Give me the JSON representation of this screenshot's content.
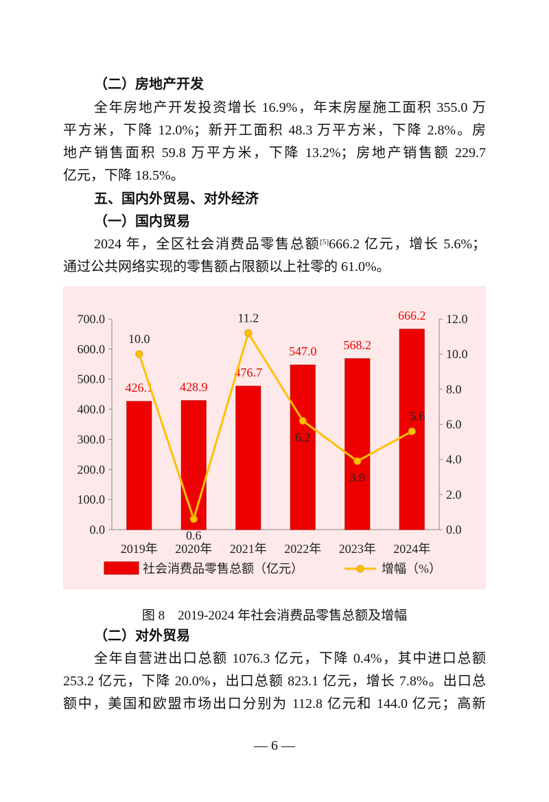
{
  "section1": {
    "heading": "（二）房地产开发",
    "lines": [
      "全年房地产开发投资增长 16.9%，年末房屋施工面积 355.0 万",
      "平方米，下降 12.0%；新开工面积 48.3 万平方米，下降 2.8%。房",
      "地产销售面积 59.8 万平方米，下降 13.2%；房地产销售额 229.7",
      "亿元，下降 18.5%。"
    ]
  },
  "section2": {
    "heading": "五、国内外贸易、对外经济",
    "subheading": "（一）国内贸易",
    "line1_a": "2024 年，全区社会消费品零售总额",
    "line1_sup": "[5]",
    "line1_b": "666.2 亿元，增长 5.6%；",
    "line2": "通过公共网络实现的零售额占限额以上社零的 61.0%。"
  },
  "chart_data": {
    "type": "bar+line",
    "categories": [
      "2019年",
      "2020年",
      "2021年",
      "2022年",
      "2023年",
      "2024年"
    ],
    "series": [
      {
        "name": "社会消费品零售总额（亿元）",
        "type": "bar",
        "axis": "left",
        "color": "#ee0000",
        "values": [
          426.1,
          428.9,
          476.7,
          547.0,
          568.2,
          666.2
        ],
        "labels": [
          "426.1",
          "428.9",
          "476.7",
          "547.0",
          "568.2",
          "666.2"
        ]
      },
      {
        "name": "增幅（%）",
        "type": "line",
        "axis": "right",
        "color": "#ffc000",
        "values": [
          10.0,
          0.6,
          11.2,
          6.2,
          3.9,
          5.6
        ],
        "labels": [
          "10.0",
          "0.6",
          "11.2",
          "6.2",
          "3.9",
          "5.6"
        ]
      }
    ],
    "left_axis": {
      "range": [
        0,
        700
      ],
      "ticks": [
        "0.0",
        "100.0",
        "200.0",
        "300.0",
        "400.0",
        "500.0",
        "600.0",
        "700.0"
      ]
    },
    "right_axis": {
      "range": [
        0,
        12
      ],
      "ticks": [
        "0.0",
        "2.0",
        "4.0",
        "6.0",
        "8.0",
        "10.0",
        "12.0"
      ]
    },
    "background": "#fde9e9",
    "legend_position": "bottom",
    "grid": false
  },
  "caption": "图 8　2019-2024 年社会消费品零售总额及增幅",
  "section3": {
    "heading": "（二）对外贸易",
    "lines": [
      "全年自营进出口总额 1076.3 亿元，下降 0.4%，其中进口总额",
      "253.2 亿元，下降 20.0%，出口总额 823.1 亿元，增长 7.8%。出口总",
      "额中，美国和欧盟市场出口分别为 112.8 亿元和 144.0 亿元；高新"
    ]
  },
  "page_number": "— 6 —"
}
